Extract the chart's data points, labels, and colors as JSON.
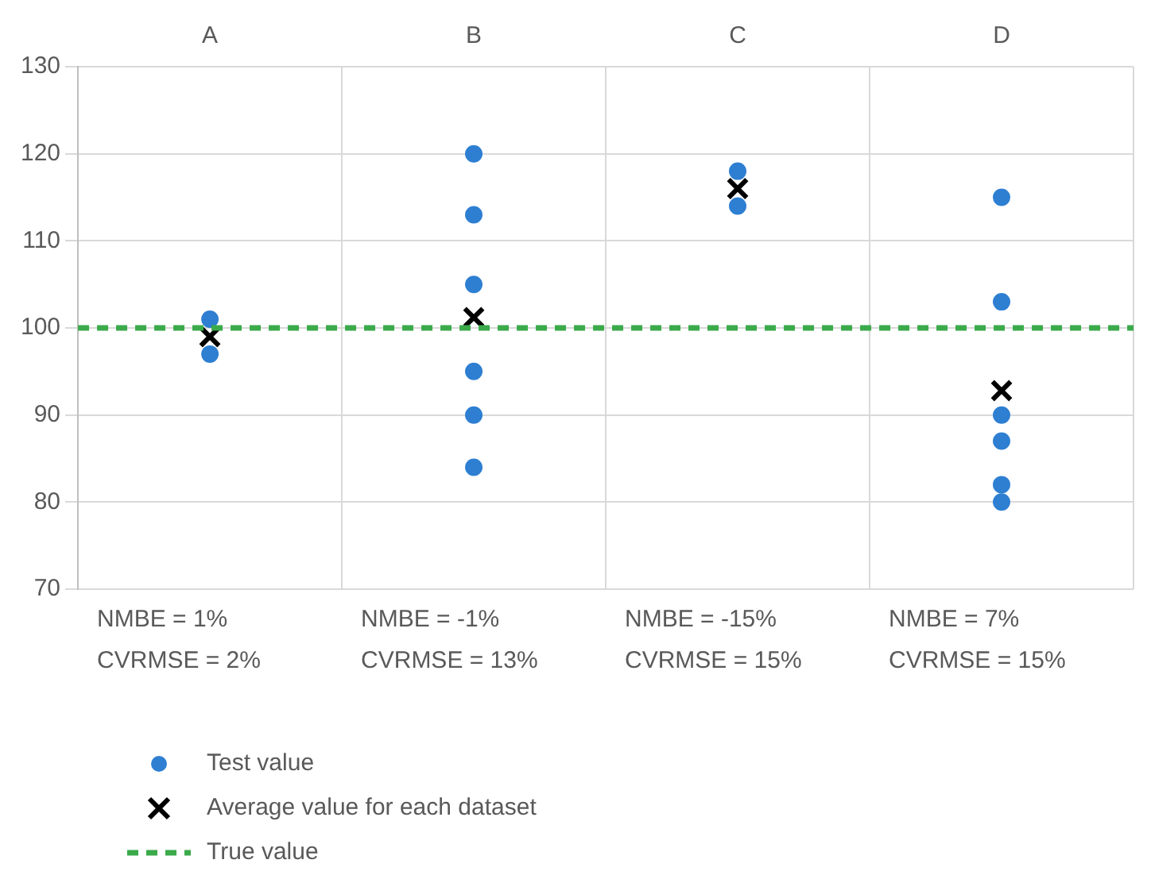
{
  "chart_data": {
    "type": "scatter",
    "categories": [
      "A",
      "B",
      "C",
      "D"
    ],
    "series": [
      {
        "name": "Test value",
        "color": "#2e7fd2",
        "marker": "circle",
        "x": [
          "A",
          "A",
          "B",
          "B",
          "B",
          "B",
          "B",
          "B",
          "C",
          "C",
          "D",
          "D",
          "D",
          "D",
          "D",
          "D"
        ],
        "values": [
          101,
          97,
          120,
          113,
          105,
          95,
          90,
          84,
          118,
          114,
          115,
          103,
          90,
          87,
          82,
          80
        ]
      },
      {
        "name": "Average value for each dataset",
        "color": "#000000",
        "marker": "cross",
        "x": [
          "A",
          "B",
          "C",
          "D"
        ],
        "values": [
          99,
          101.2,
          116,
          92.8
        ]
      }
    ],
    "ref_lines": [
      {
        "axis": "y",
        "value": 100,
        "label": "True value",
        "color": "#3aaa4a",
        "line_style": "dashed"
      }
    ],
    "annotations": [
      "NMBE = 1%\nCVRMSE = 2%",
      "NMBE = -1%\nCVRMSE = 13%",
      "NMBE = -15%\nCVRMSE = 15%",
      "NMBE = 7%\nCVRMSE = 15%"
    ],
    "ylim": [
      70,
      130
    ],
    "yticks": [
      70,
      80,
      90,
      100,
      110,
      120,
      130
    ],
    "grid": true,
    "legend": "bottom left"
  }
}
